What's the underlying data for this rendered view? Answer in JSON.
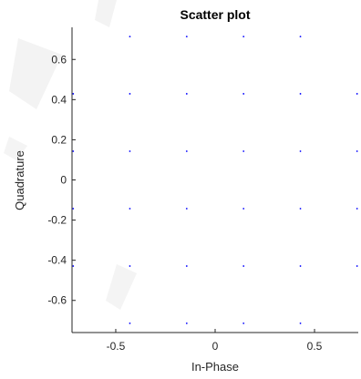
{
  "chart_data": {
    "type": "scatter",
    "title": "Scatter plot",
    "xlabel": "In-Phase",
    "ylabel": "Quadrature",
    "xlim": [
      -0.72,
      0.72
    ],
    "ylim": [
      -0.76,
      0.76
    ],
    "xticks": [
      -0.5,
      0,
      0.5
    ],
    "xtick_labels": [
      "-0.5",
      "0",
      "0.5"
    ],
    "yticks": [
      0.6,
      0.4,
      0.2,
      0,
      -0.2,
      -0.4,
      -0.6
    ],
    "ytick_labels": [
      "0.6",
      "0.4",
      "0.2",
      "0",
      "-0.2",
      "-0.4",
      "-0.6"
    ],
    "grid": false,
    "marker_color": "#0000ff",
    "axis_color": "#262626",
    "points": [
      [
        -0.429,
        0.714
      ],
      [
        -0.143,
        0.714
      ],
      [
        0.143,
        0.714
      ],
      [
        0.429,
        0.714
      ],
      [
        -0.714,
        0.429
      ],
      [
        -0.429,
        0.429
      ],
      [
        -0.143,
        0.429
      ],
      [
        0.143,
        0.429
      ],
      [
        0.429,
        0.429
      ],
      [
        0.714,
        0.429
      ],
      [
        -0.714,
        0.143
      ],
      [
        -0.429,
        0.143
      ],
      [
        -0.143,
        0.143
      ],
      [
        0.143,
        0.143
      ],
      [
        0.429,
        0.143
      ],
      [
        0.714,
        0.143
      ],
      [
        -0.714,
        -0.143
      ],
      [
        -0.429,
        -0.143
      ],
      [
        -0.143,
        -0.143
      ],
      [
        0.143,
        -0.143
      ],
      [
        0.429,
        -0.143
      ],
      [
        0.714,
        -0.143
      ],
      [
        -0.714,
        -0.429
      ],
      [
        -0.429,
        -0.429
      ],
      [
        -0.143,
        -0.429
      ],
      [
        0.143,
        -0.429
      ],
      [
        0.429,
        -0.429
      ],
      [
        0.714,
        -0.429
      ],
      [
        -0.429,
        -0.714
      ],
      [
        -0.143,
        -0.714
      ],
      [
        0.143,
        -0.714
      ],
      [
        0.429,
        -0.714
      ]
    ]
  }
}
